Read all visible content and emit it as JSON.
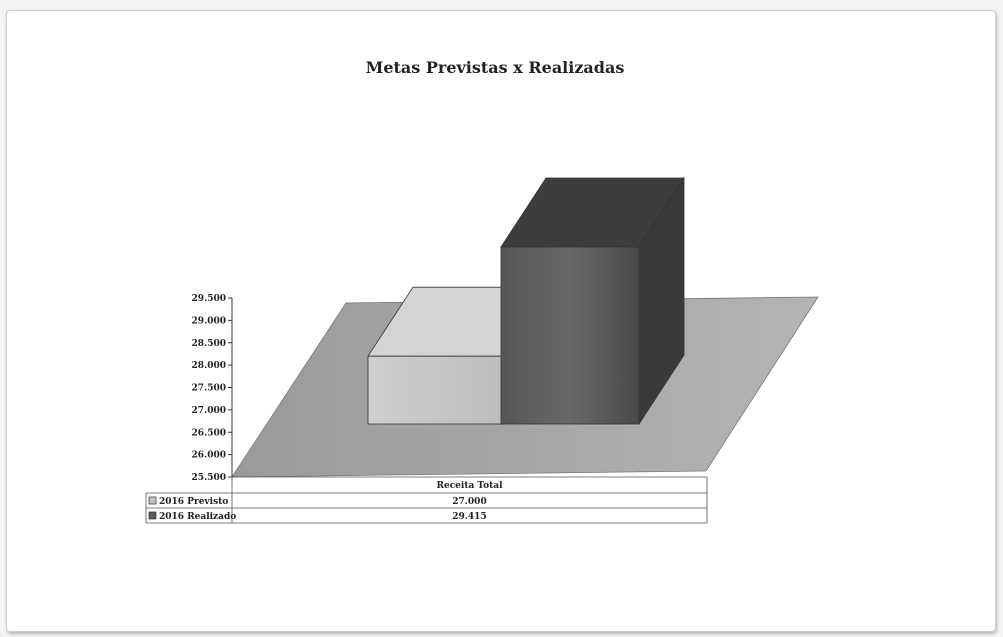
{
  "chart_data": {
    "type": "bar",
    "title": "Metas Previstas x Realizadas",
    "categories": [
      "Receita Total"
    ],
    "series": [
      {
        "name": "2016 Previsto",
        "values": [
          27000
        ],
        "value_label": "27.000",
        "color": "#c2c2c2"
      },
      {
        "name": "2016 Realizado",
        "values": [
          29415
        ],
        "value_label": "29.415",
        "color": "#5a5a5a"
      }
    ],
    "ylim": [
      25500,
      29500
    ],
    "yticks": [
      "29.500",
      "29.000",
      "28.500",
      "28.000",
      "27.500",
      "27.000",
      "26.500",
      "26.000",
      "25.500"
    ],
    "data_table": true,
    "grid": false,
    "style": "3d"
  }
}
